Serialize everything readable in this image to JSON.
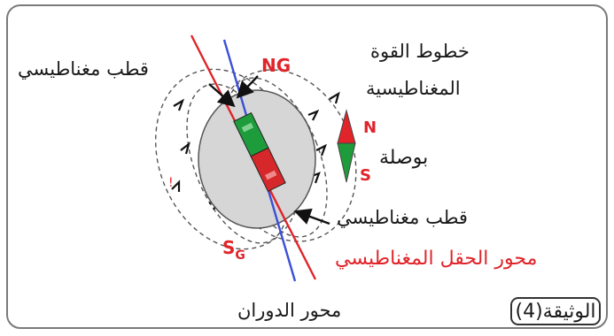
{
  "labels": {
    "magnetic_pole_top": "قطب مغناطيسي",
    "field_lines": [
      "خطوط القوة",
      "المغناطيسية"
    ],
    "geo_north": "NG",
    "geo_south_letter": "S",
    "geo_south_sub": "G",
    "compass_n": "N",
    "compass_s": "S",
    "compass": "بوصلة",
    "magnetic_pole_bottom": "قطب مغناطيسي",
    "magnetic_axis": "محور الحقل المغناطيسي",
    "rotation_axis": "محور الدوران",
    "document": "الوثيقة(4)"
  },
  "colors": {
    "magnetic_axis": "#e0242a",
    "rotation_axis": "#3a4fd8",
    "earth_fill": "#d6d6d6",
    "magnet_green": "#1e9b3a",
    "magnet_red": "#d6282b",
    "compass_red": "#e0242a",
    "compass_green": "#1e9b3a"
  }
}
